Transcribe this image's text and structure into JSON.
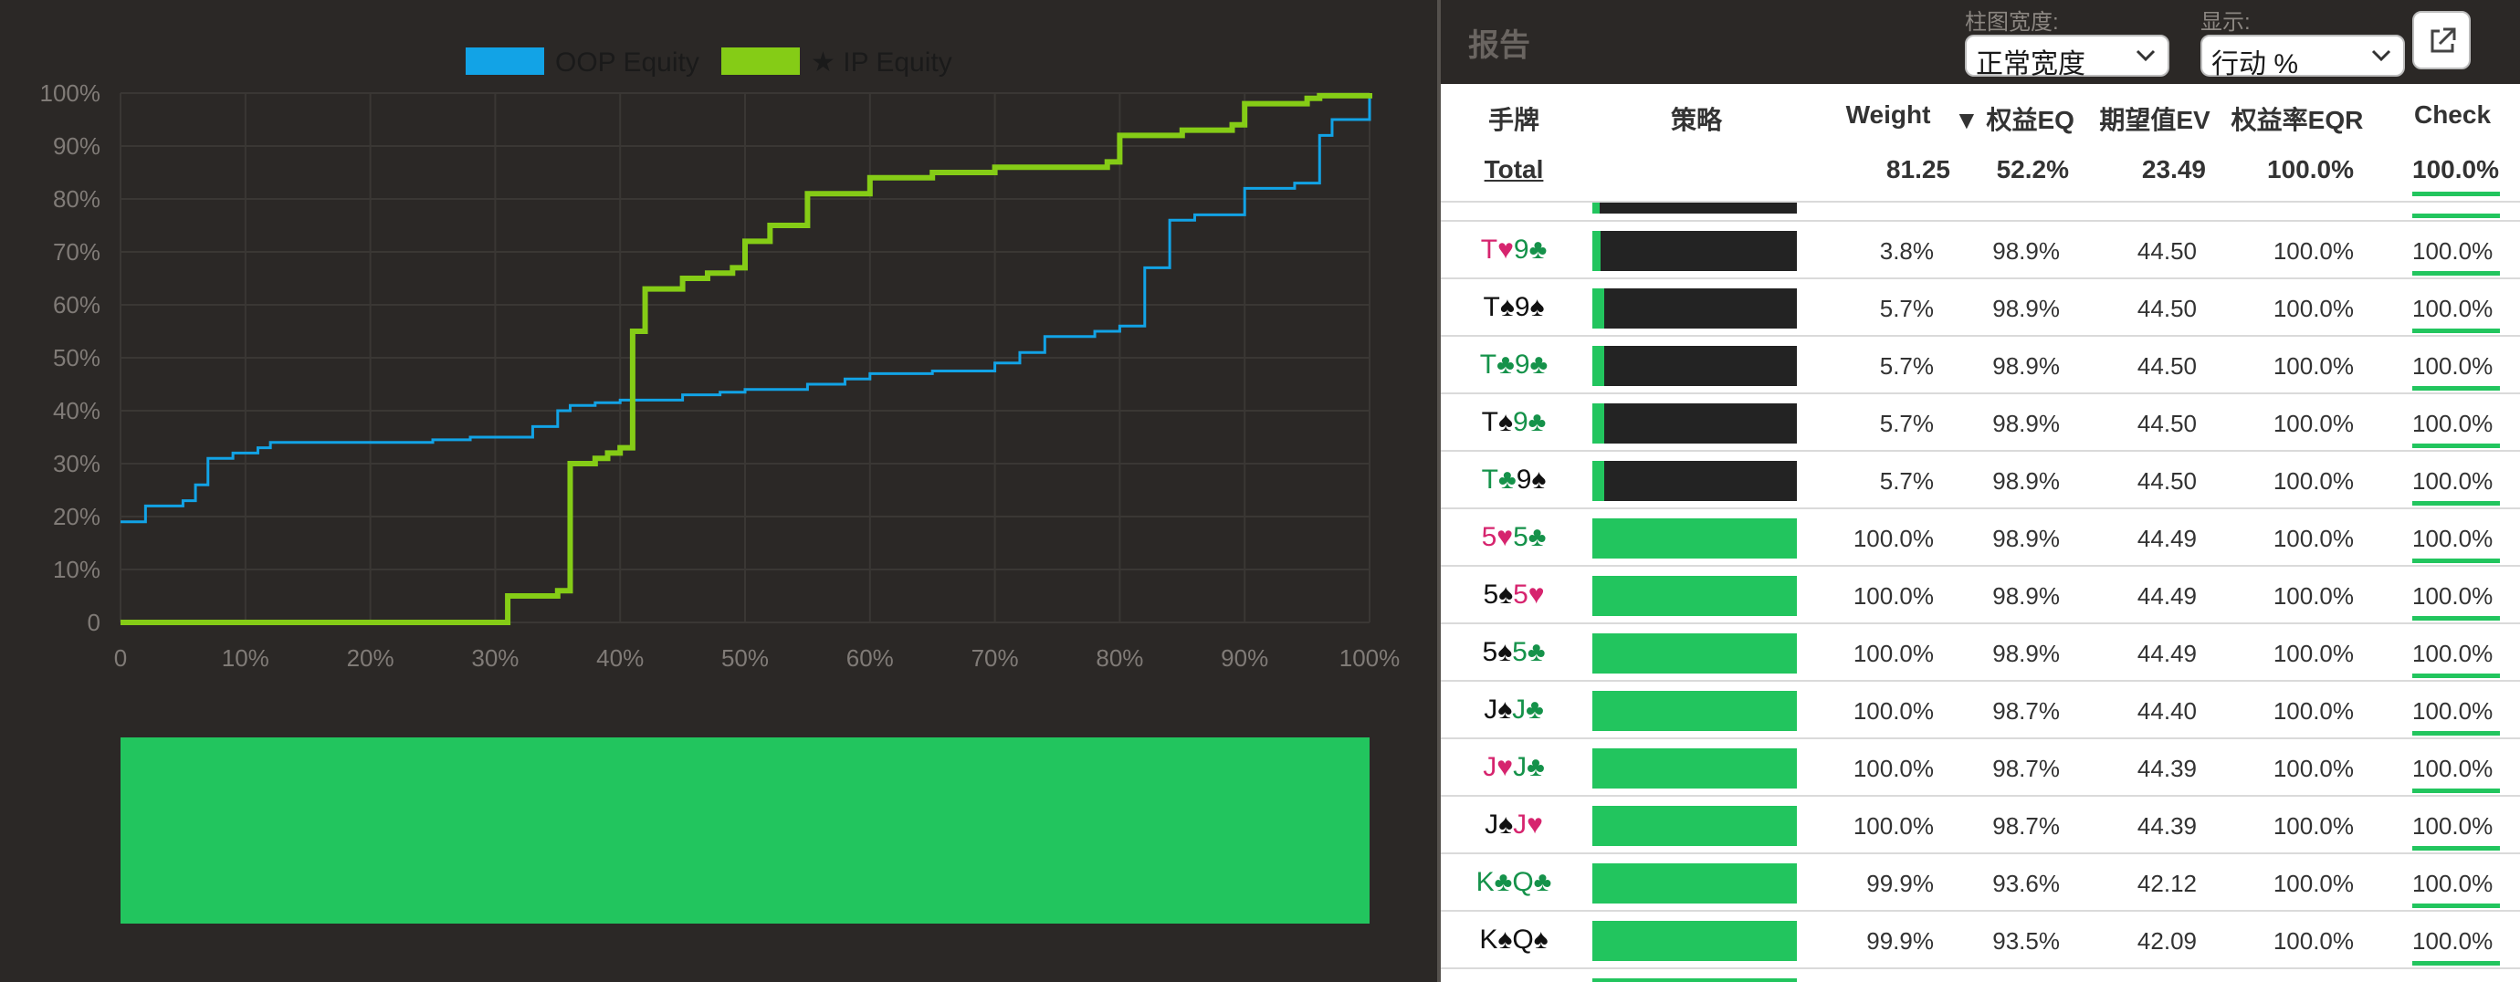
{
  "chart_data": {
    "type": "line",
    "legend": [
      "OOP Equity",
      "★ IP Equity"
    ],
    "legend_placement": "top-center",
    "x_ticks": [
      "0",
      "10%",
      "20%",
      "30%",
      "40%",
      "50%",
      "60%",
      "70%",
      "80%",
      "90%",
      "100%"
    ],
    "y_ticks": [
      "0",
      "10%",
      "20%",
      "30%",
      "40%",
      "50%",
      "60%",
      "70%",
      "80%",
      "90%",
      "100%"
    ],
    "xlim": [
      0,
      100
    ],
    "ylim": [
      0,
      100
    ],
    "grid": true,
    "series": [
      {
        "name": "OOP Equity",
        "color": "#12a3e6",
        "x": [
          0,
          2,
          5,
          6,
          7,
          9,
          11,
          12,
          15,
          20,
          25,
          28,
          30,
          33,
          35,
          36,
          38,
          40,
          45,
          48,
          50,
          55,
          58,
          60,
          65,
          70,
          72,
          74,
          78,
          80,
          82,
          84,
          86,
          90,
          94,
          96,
          97,
          100
        ],
        "y": [
          19,
          22,
          23,
          26,
          31,
          32,
          33,
          34,
          34,
          34,
          34.5,
          35,
          35,
          37,
          40,
          41,
          41.5,
          42,
          43,
          43.5,
          44,
          45,
          46,
          47,
          47.5,
          49,
          51,
          54,
          55,
          56,
          67,
          76,
          77,
          82,
          83,
          92,
          95,
          100
        ]
      },
      {
        "name": "★ IP Equity",
        "color": "#85cc16",
        "x": [
          0,
          10,
          20,
          30,
          31,
          35,
          36,
          38,
          39,
          40,
          41,
          42,
          45,
          46,
          47,
          49,
          50,
          52,
          55,
          60,
          65,
          70,
          75,
          79,
          80,
          85,
          88,
          89,
          90,
          95,
          96,
          100
        ],
        "y": [
          0,
          0,
          0,
          0,
          5,
          6,
          30,
          31,
          32,
          33,
          55,
          63,
          65,
          65,
          66,
          67,
          72,
          75,
          81,
          84,
          85,
          86,
          86,
          87,
          92,
          93,
          93,
          94,
          98,
          99,
          99.5,
          100
        ]
      }
    ]
  },
  "strategy_bar": {
    "color": "#22c55e"
  },
  "report": {
    "title": "报告",
    "bar_width_label": "柱图宽度:",
    "bar_width_value": "正常宽度",
    "display_label": "显示:",
    "display_value": "行动 %"
  },
  "table": {
    "headers": {
      "hand": "手牌",
      "strategy": "策略",
      "weight": "Weight",
      "eq": "▼ 权益EQ",
      "ev": "期望值EV",
      "eqr": "权益率EQR",
      "check": "Check"
    },
    "total": {
      "label": "Total",
      "weight": "81.25",
      "eq": "52.2%",
      "ev": "23.49",
      "eqr": "100.0%",
      "check": "100.0%"
    },
    "rows": [
      {
        "c1": "T",
        "s1": "♥",
        "k1": "r",
        "c2": "9",
        "s2": "♣",
        "k2": "g",
        "strategy_fill": 0.038,
        "weight": "3.8%",
        "eq": "98.9%",
        "ev": "44.50",
        "eqr": "100.0%",
        "check": "100.0%"
      },
      {
        "c1": "T",
        "s1": "♠",
        "k1": "b",
        "c2": "9",
        "s2": "♠",
        "k2": "b",
        "strategy_fill": 0.057,
        "weight": "5.7%",
        "eq": "98.9%",
        "ev": "44.50",
        "eqr": "100.0%",
        "check": "100.0%"
      },
      {
        "c1": "T",
        "s1": "♣",
        "k1": "g",
        "c2": "9",
        "s2": "♣",
        "k2": "g",
        "strategy_fill": 0.057,
        "weight": "5.7%",
        "eq": "98.9%",
        "ev": "44.50",
        "eqr": "100.0%",
        "check": "100.0%"
      },
      {
        "c1": "T",
        "s1": "♠",
        "k1": "b",
        "c2": "9",
        "s2": "♣",
        "k2": "g",
        "strategy_fill": 0.057,
        "weight": "5.7%",
        "eq": "98.9%",
        "ev": "44.50",
        "eqr": "100.0%",
        "check": "100.0%"
      },
      {
        "c1": "T",
        "s1": "♣",
        "k1": "g",
        "c2": "9",
        "s2": "♠",
        "k2": "b",
        "strategy_fill": 0.057,
        "weight": "5.7%",
        "eq": "98.9%",
        "ev": "44.50",
        "eqr": "100.0%",
        "check": "100.0%"
      },
      {
        "c1": "5",
        "s1": "♥",
        "k1": "r",
        "c2": "5",
        "s2": "♣",
        "k2": "g",
        "strategy_fill": 1.0,
        "weight": "100.0%",
        "eq": "98.9%",
        "ev": "44.49",
        "eqr": "100.0%",
        "check": "100.0%"
      },
      {
        "c1": "5",
        "s1": "♠",
        "k1": "b",
        "c2": "5",
        "s2": "♥",
        "k2": "r",
        "strategy_fill": 1.0,
        "weight": "100.0%",
        "eq": "98.9%",
        "ev": "44.49",
        "eqr": "100.0%",
        "check": "100.0%"
      },
      {
        "c1": "5",
        "s1": "♠",
        "k1": "b",
        "c2": "5",
        "s2": "♣",
        "k2": "g",
        "strategy_fill": 1.0,
        "weight": "100.0%",
        "eq": "98.9%",
        "ev": "44.49",
        "eqr": "100.0%",
        "check": "100.0%"
      },
      {
        "c1": "J",
        "s1": "♠",
        "k1": "b",
        "c2": "J",
        "s2": "♣",
        "k2": "g",
        "strategy_fill": 1.0,
        "weight": "100.0%",
        "eq": "98.7%",
        "ev": "44.40",
        "eqr": "100.0%",
        "check": "100.0%"
      },
      {
        "c1": "J",
        "s1": "♥",
        "k1": "r",
        "c2": "J",
        "s2": "♣",
        "k2": "g",
        "strategy_fill": 1.0,
        "weight": "100.0%",
        "eq": "98.7%",
        "ev": "44.39",
        "eqr": "100.0%",
        "check": "100.0%"
      },
      {
        "c1": "J",
        "s1": "♠",
        "k1": "b",
        "c2": "J",
        "s2": "♥",
        "k2": "r",
        "strategy_fill": 1.0,
        "weight": "100.0%",
        "eq": "98.7%",
        "ev": "44.39",
        "eqr": "100.0%",
        "check": "100.0%"
      },
      {
        "c1": "K",
        "s1": "♣",
        "k1": "g",
        "c2": "Q",
        "s2": "♣",
        "k2": "g",
        "strategy_fill": 0.999,
        "weight": "99.9%",
        "eq": "93.6%",
        "ev": "42.12",
        "eqr": "100.0%",
        "check": "100.0%"
      },
      {
        "c1": "K",
        "s1": "♠",
        "k1": "b",
        "c2": "Q",
        "s2": "♠",
        "k2": "b",
        "strategy_fill": 0.999,
        "weight": "99.9%",
        "eq": "93.5%",
        "ev": "42.09",
        "eqr": "100.0%",
        "check": "100.0%"
      }
    ]
  }
}
